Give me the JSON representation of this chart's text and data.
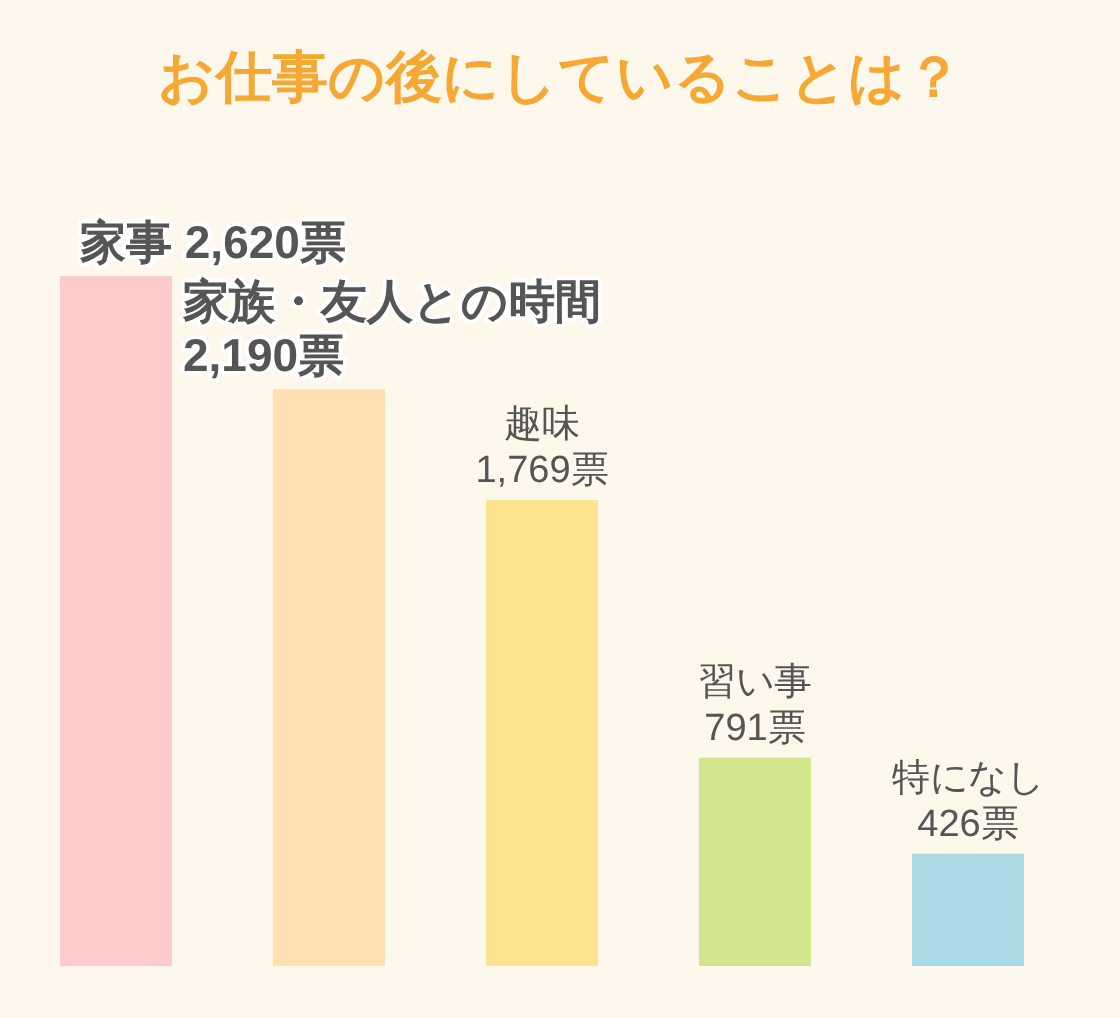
{
  "chart_data": {
    "type": "bar",
    "title": "お仕事の後にしていることは？",
    "categories": [
      "家事",
      "家族・友人との時間",
      "趣味",
      "習い事",
      "特になし"
    ],
    "values": [
      2620,
      2190,
      1769,
      791,
      426
    ],
    "value_labels": [
      "2,620票",
      "2,190票",
      "1,769票",
      "791票",
      "426票"
    ],
    "colors": [
      "#ffcccc",
      "#fee0b2",
      "#fee38f",
      "#d2e78d",
      "#add8e6"
    ]
  }
}
